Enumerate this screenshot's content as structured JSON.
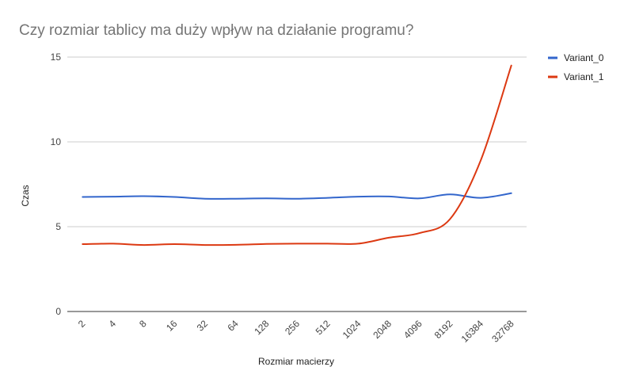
{
  "chart_data": {
    "type": "line",
    "title": "Czy rozmiar tablicy ma duży wpływ na działanie programu?",
    "xlabel": "Rozmiar macierzy",
    "ylabel": "Czas",
    "categories": [
      "2",
      "4",
      "8",
      "16",
      "32",
      "64",
      "128",
      "256",
      "512",
      "1024",
      "2048",
      "4096",
      "8192",
      "16384",
      "32768"
    ],
    "ylim": [
      0,
      15
    ],
    "yticks": [
      0,
      5,
      10,
      15
    ],
    "grid": true,
    "legend_position": "right",
    "series": [
      {
        "name": "Variant_0",
        "color": "#3366cc",
        "values": [
          6.75,
          6.77,
          6.8,
          6.75,
          6.65,
          6.65,
          6.67,
          6.65,
          6.7,
          6.77,
          6.78,
          6.67,
          6.9,
          6.7,
          6.97
        ]
      },
      {
        "name": "Variant_1",
        "color": "#dc3912",
        "values": [
          3.97,
          4.0,
          3.92,
          3.97,
          3.92,
          3.93,
          3.98,
          4.0,
          4.0,
          4.0,
          4.35,
          4.62,
          5.45,
          8.9,
          14.5
        ]
      }
    ]
  }
}
